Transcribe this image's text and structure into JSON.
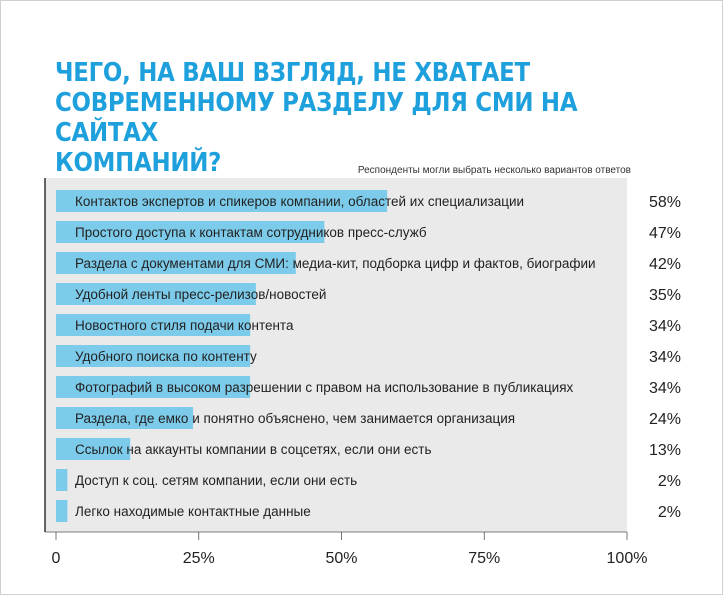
{
  "title": "ЧЕГО, НА ВАШ ВЗГЛЯД, НЕ ХВАТАЕТ\nСОВРЕМЕННОМУ РАЗДЕЛУ ДЛЯ СМИ НА САЙТАХ\nКОМПАНИЙ?",
  "subtitle": "Респонденты могли выбрать несколько вариантов ответов",
  "colors": {
    "accent": "#1ea0dc",
    "bar": "#7dcbea",
    "plot_bg": "#ebeaea",
    "text": "#222222"
  },
  "chart_data": {
    "type": "bar",
    "orientation": "horizontal",
    "title": "ЧЕГО, НА ВАШ ВЗГЛЯД, НЕ ХВАТАЕТ СОВРЕМЕННОМУ РАЗДЕЛУ ДЛЯ СМИ НА САЙТАХ КОМПАНИЙ?",
    "subtitle": "Респонденты могли выбрать несколько вариантов ответов",
    "categories": [
      "Контактов экспертов и спикеров компании, областей их специализации",
      "Простого доступа к контактам сотрудников пресс-служб",
      "Раздела с документами для СМИ: медиа-кит, подборка цифр и фактов, биографии",
      "Удобной ленты пресс-релизов/новостей",
      "Новостного стиля подачи контента",
      "Удобного поиска по контенту",
      "Фотографий в высоком разрешении с правом на использование в публикациях",
      "Раздела, где емко и понятно объяснено, чем занимается организация",
      "Ссылок на аккаунты компании в соцсетях, если они есть",
      "Доступ к соц. сетям компании, если они есть",
      "Легко находимые контактные данные"
    ],
    "values": [
      58,
      47,
      42,
      35,
      34,
      34,
      34,
      24,
      13,
      2,
      2
    ],
    "value_labels": [
      "58%",
      "47%",
      "42%",
      "35%",
      "34%",
      "34%",
      "34%",
      "24%",
      "13%",
      "2%",
      "2%"
    ],
    "xlim": [
      0,
      100
    ],
    "x_ticks": [
      0,
      25,
      50,
      75,
      100
    ],
    "x_tick_labels": [
      "0",
      "25%",
      "50%",
      "75%",
      "100%"
    ],
    "grid": false,
    "legend": "none"
  }
}
